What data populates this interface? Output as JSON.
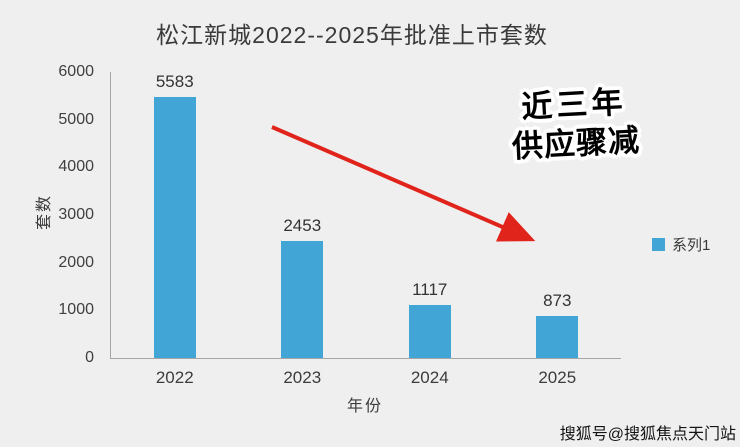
{
  "chart_data": {
    "type": "bar",
    "title": "松江新城2022--2025年批准上市套数",
    "categories": [
      "2022",
      "2023",
      "2024",
      "2025"
    ],
    "values": [
      5583,
      2453,
      1117,
      873
    ],
    "series_name": "系列1",
    "xlabel": "年份",
    "ylabel": "套数",
    "ylim": [
      0,
      6000
    ],
    "ytick_step": 1000,
    "grid": false,
    "legend_position": "right",
    "data_labels": true
  },
  "annotation": {
    "line1": "近三年",
    "line2": "供应骤减",
    "arrow": "red-arrow-pointing-down-right"
  },
  "watermark": "搜狐号@搜狐焦点天门站",
  "colors": {
    "background": "#efefef",
    "bar": "#41a5d6",
    "axis": "#a6a6a6",
    "arrow": "#e0241b",
    "text": "#3a3a3a"
  }
}
